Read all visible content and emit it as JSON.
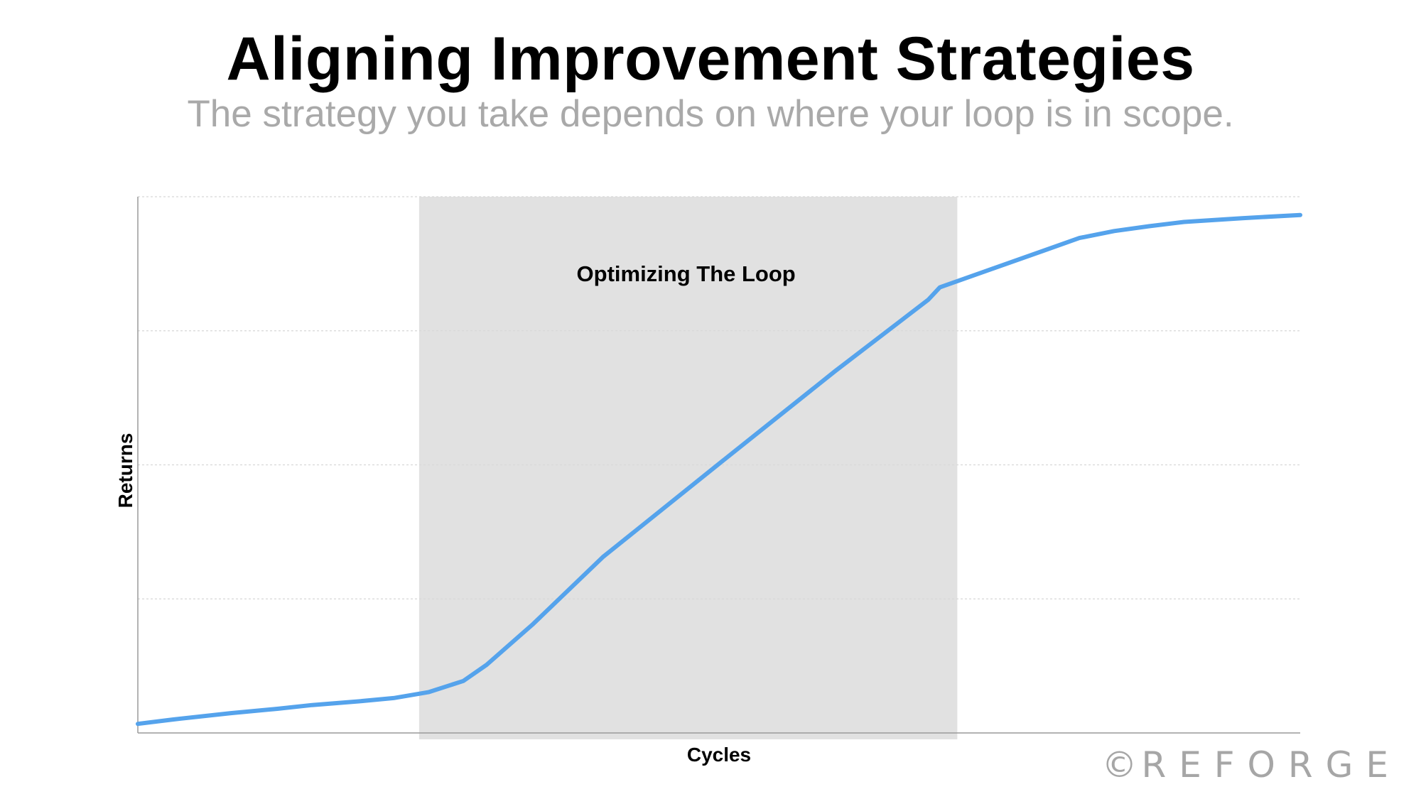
{
  "header": {
    "title": "Aligning Improvement Strategies",
    "subtitle": "The strategy you take depends on where your loop is in scope."
  },
  "watermark": {
    "symbol": "©",
    "text": "REFORGE"
  },
  "colors": {
    "line": "#55a3ec",
    "region": "#e1e1e1",
    "grid": "#d8d8d8",
    "axis": "#9a9a9a",
    "text": "#000000",
    "subtitle": "#a9a9a9",
    "watermark": "#a6a6a6"
  },
  "chart_data": {
    "type": "line",
    "title": "",
    "xlabel": "Cycles",
    "ylabel": "Returns",
    "xlim": [
      0,
      100
    ],
    "ylim": [
      0,
      100
    ],
    "grid": true,
    "legend": "none",
    "x_ticks_visible": false,
    "y_ticks_visible": false,
    "series": [
      {
        "x": [
          0,
          3,
          8,
          12,
          15,
          19,
          22,
          25,
          28,
          30,
          34,
          40,
          50,
          60,
          68,
          69,
          72,
          78,
          81,
          84,
          87,
          90,
          95,
          100
        ],
        "y": [
          1.7,
          2.5,
          3.7,
          4.5,
          5.2,
          5.9,
          6.5,
          7.6,
          9.7,
          12.7,
          20.3,
          32.8,
          50.2,
          67.5,
          80.8,
          83.1,
          85.4,
          90.0,
          92.3,
          93.6,
          94.5,
          95.3,
          96.0,
          96.6
        ]
      }
    ],
    "highlight_region": {
      "x": [
        24.2,
        70.5
      ],
      "label": "Optimizing The Loop"
    }
  }
}
